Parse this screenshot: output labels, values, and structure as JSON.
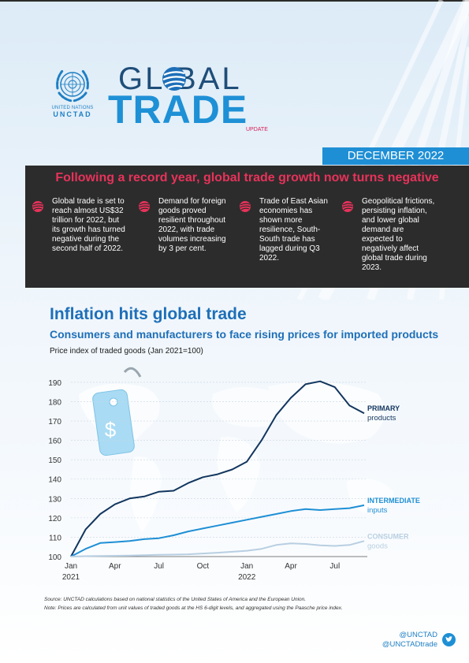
{
  "brand": {
    "org_line1": "UNITED NATIONS",
    "org_line2": "UNCTAD",
    "title_line1": "GL  BAL",
    "title_line2": "TRADE",
    "title_tag": "UPDATE",
    "date": "DECEMBER 2022"
  },
  "summary": {
    "headline": "Following a record year, global trade growth now turns negative",
    "bullets": [
      {
        "text": "Global trade is set to reach almost US$32 trillion for 2022, but its growth has turned negative during the second half of 2022."
      },
      {
        "text": "Demand for foreign goods proved resilient throughout 2022, with trade volumes increasing by 3 per cent."
      },
      {
        "text": "Trade of East Asian economies has shown more resilience, South-South trade has lagged during Q3 2022."
      },
      {
        "text": "Geopolitical frictions, persisting inflation, and lower global demand are expected to negatively affect global trade during 2023."
      }
    ]
  },
  "section": {
    "title": "Inflation hits global trade",
    "subtitle": "Consumers and manufacturers to face rising prices for imported products",
    "chart_label": "Price index of traded goods (Jan 2021=100)"
  },
  "chart_data": {
    "type": "line",
    "ylim": [
      100,
      192
    ],
    "yticks": [
      "100",
      "110",
      "120",
      "130",
      "140",
      "150",
      "160",
      "170",
      "180",
      "190"
    ],
    "xticks": [
      {
        "label": "Jan",
        "sub": "2021",
        "month": 0
      },
      {
        "label": "Apr",
        "sub": "",
        "month": 3
      },
      {
        "label": "Jul",
        "sub": "",
        "month": 6
      },
      {
        "label": "Oct",
        "sub": "",
        "month": 9
      },
      {
        "label": "Jan",
        "sub": "2022",
        "month": 12
      },
      {
        "label": "Apr",
        "sub": "",
        "month": 15
      },
      {
        "label": "Jul",
        "sub": "",
        "month": 18
      }
    ],
    "grid": true,
    "series": [
      {
        "name": "PRIMARY",
        "subname": "products",
        "color": "#12365f",
        "values": [
          100,
          114,
          122,
          127,
          130,
          131,
          133.5,
          134,
          138,
          141,
          142.5,
          145,
          149,
          160,
          173,
          182,
          189,
          190.5,
          187.5,
          178,
          174
        ]
      },
      {
        "name": "INTERMEDIATE",
        "subname": "inputs",
        "color": "#1e8fd5",
        "values": [
          100,
          104,
          107,
          107.5,
          108,
          109,
          109.5,
          111,
          113,
          114.5,
          116,
          117.5,
          119,
          120.5,
          122,
          123.5,
          124.5,
          124,
          124.5,
          125,
          126.5
        ]
      },
      {
        "name": "CONSUMER",
        "subname": "goods",
        "color": "#b8cfe2",
        "values": [
          100,
          100.2,
          100.3,
          100.4,
          100.5,
          100.7,
          100.9,
          101,
          101.2,
          101.6,
          102,
          102.5,
          103,
          104,
          106,
          106.8,
          106.5,
          105.8,
          105.5,
          106,
          108
        ]
      }
    ]
  },
  "footnotes": {
    "source_label": "Source:",
    "source_text": "UNCTAD calculations based on national statistics of the United States of America and the European Union.",
    "note_label": "Note:",
    "note_text": "Prices are calculated from unit values of traded goods at the HS 6-digit levels, and aggregated using the Paasche price index."
  },
  "social": {
    "handle1": "@UNCTAD",
    "handle2": "@UNCTADtrade",
    "icon": "twitter-icon"
  }
}
